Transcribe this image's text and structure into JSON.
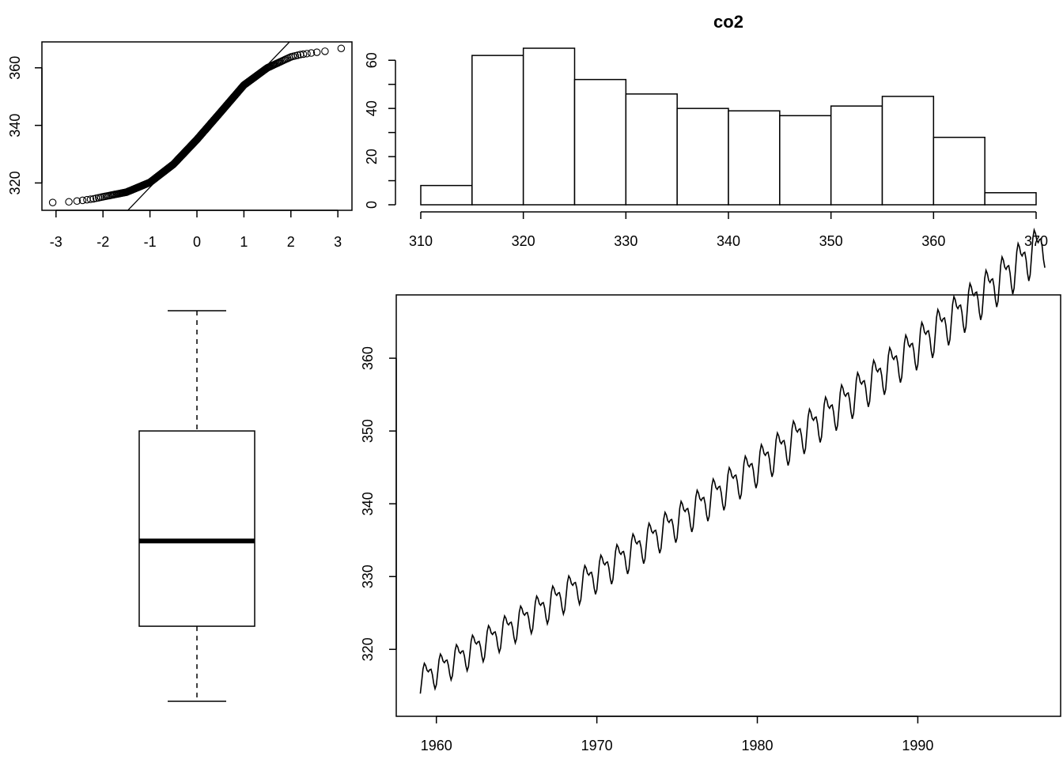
{
  "chart_data": [
    {
      "type": "qqplot",
      "title": "",
      "xlabel": "",
      "ylabel": "",
      "xlim": [
        -3.3,
        3.3
      ],
      "ylim": [
        310.5,
        369
      ],
      "x_ticks": [
        -3,
        -2,
        -1,
        0,
        1,
        2,
        3
      ],
      "y_ticks": [
        320,
        340,
        360
      ],
      "x_tick_labels": [
        "-3",
        "-2",
        "-1",
        "0",
        "1",
        "2",
        "3"
      ],
      "y_tick_labels": [
        "320",
        "340",
        "360"
      ],
      "reference_line": {
        "intercept": 335.5,
        "slope": 17.0
      },
      "quantile_curve": {
        "z": [
          -3.09,
          -2.75,
          -2.5,
          -2.2,
          -2.0,
          -1.5,
          -1.0,
          -0.5,
          0.0,
          0.5,
          1.0,
          1.5,
          2.0,
          2.2,
          2.5,
          2.75,
          3.09
        ],
        "y": [
          313.2,
          313.4,
          313.8,
          314.5,
          315.2,
          316.8,
          320.2,
          326.5,
          335.1,
          344.5,
          354.0,
          360.0,
          363.8,
          364.6,
          365.3,
          365.8,
          366.8
        ]
      },
      "n_points": 468
    },
    {
      "type": "bar",
      "title": "co2",
      "xlabel": "",
      "ylabel": "",
      "bin_edges": [
        310,
        315,
        320,
        325,
        330,
        335,
        340,
        345,
        350,
        355,
        360,
        365,
        370
      ],
      "counts": [
        8,
        62,
        65,
        52,
        46,
        40,
        39,
        37,
        41,
        45,
        28,
        5
      ],
      "xlim": [
        310,
        370
      ],
      "ylim": [
        0,
        68
      ],
      "x_ticks": [
        310,
        320,
        330,
        340,
        350,
        360,
        370
      ],
      "y_ticks": [
        0,
        20,
        40,
        60
      ],
      "x_tick_labels": [
        "310",
        "320",
        "330",
        "340",
        "350",
        "360",
        "370"
      ],
      "y_tick_labels": [
        "0",
        "20",
        "40",
        "60"
      ]
    },
    {
      "type": "boxplot",
      "title": "",
      "min": 313.2,
      "q1": 323.5,
      "median": 335.2,
      "q3": 350.3,
      "max": 366.8
    },
    {
      "type": "line",
      "title": "",
      "xlabel": "",
      "ylabel": "",
      "x_start": 1959.0,
      "frequency": 12,
      "n_months": 468,
      "trend_start": 315.9,
      "trend_rate_per_year": 1.235,
      "trend_acceleration": 0.008,
      "seasonal_amplitude": [
        1.6,
        2.4
      ],
      "xlim": [
        1957.5,
        1998.9
      ],
      "ylim": [
        310.8,
        368.7
      ],
      "x_ticks": [
        1960,
        1970,
        1980,
        1990
      ],
      "y_ticks": [
        320,
        330,
        340,
        350,
        360
      ],
      "x_tick_labels": [
        "1960",
        "1970",
        "1980",
        "1990"
      ],
      "y_tick_labels": [
        "320",
        "330",
        "340",
        "350",
        "360"
      ]
    }
  ]
}
